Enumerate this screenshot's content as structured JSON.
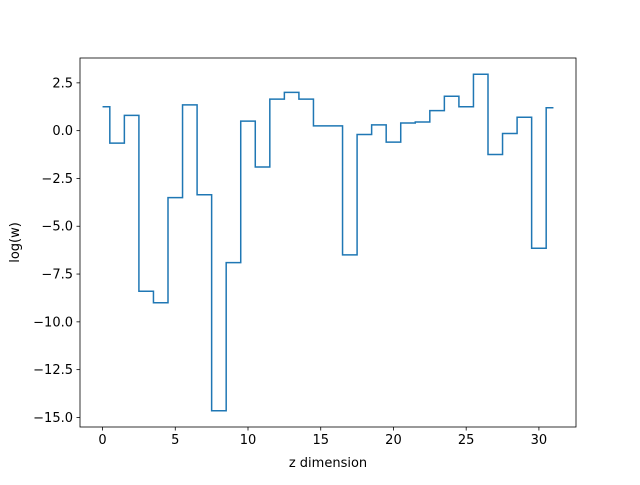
{
  "chart_data": {
    "type": "line",
    "drawstyle": "steps-mid",
    "title": "",
    "xlabel": "z dimension",
    "ylabel": "log(w)",
    "xlim": [
      -1.55,
      32.55
    ],
    "ylim": [
      -15.5,
      3.8
    ],
    "xticks": [
      0,
      5,
      10,
      15,
      20,
      25,
      30
    ],
    "xtick_labels": [
      "0",
      "5",
      "10",
      "15",
      "20",
      "25",
      "30"
    ],
    "yticks": [
      2.5,
      0.0,
      -2.5,
      -5.0,
      -7.5,
      -10.0,
      -12.5,
      -15.0
    ],
    "ytick_labels": [
      "2.5",
      "0.0",
      "−2.5",
      "−5.0",
      "−7.5",
      "−10.0",
      "−12.5",
      "−15.0"
    ],
    "grid": false,
    "legend": "none",
    "series": [
      {
        "color": "#1f77b4",
        "x": [
          0,
          1,
          2,
          3,
          4,
          5,
          6,
          7,
          8,
          9,
          10,
          11,
          12,
          13,
          14,
          15,
          16,
          17,
          18,
          19,
          20,
          21,
          22,
          23,
          24,
          25,
          26,
          27,
          28,
          29,
          30,
          31
        ],
        "y": [
          1.25,
          -0.65,
          0.8,
          -8.4,
          -9.0,
          -3.5,
          1.35,
          -3.35,
          -14.65,
          -6.9,
          0.5,
          -1.9,
          1.65,
          2.0,
          1.65,
          0.25,
          0.25,
          -6.5,
          -0.2,
          0.3,
          -0.6,
          0.4,
          0.45,
          1.05,
          1.8,
          1.25,
          2.95,
          -1.25,
          -0.15,
          0.7,
          -6.15,
          1.2
        ]
      }
    ]
  }
}
